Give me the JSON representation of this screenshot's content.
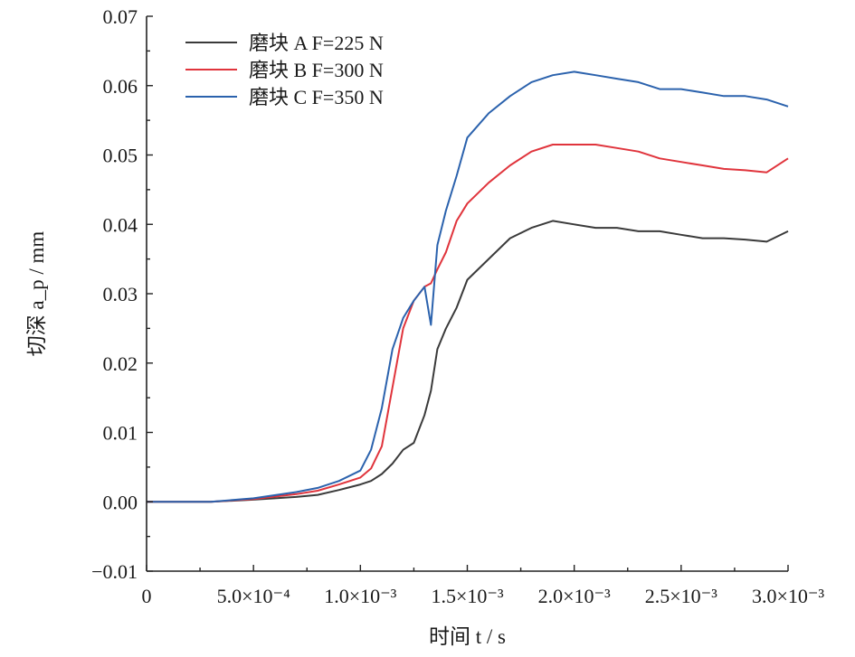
{
  "chart_data": {
    "type": "line",
    "title": "",
    "xlabel": "时间 t / s",
    "ylabel": "切深 a_p / mm",
    "xlim": [
      0,
      0.003
    ],
    "ylim": [
      -0.01,
      0.07
    ],
    "x_ticks": [
      {
        "value": 0,
        "label": "0"
      },
      {
        "value": 0.0005,
        "label": "5.0×10⁻⁴"
      },
      {
        "value": 0.001,
        "label": "1.0×10⁻³"
      },
      {
        "value": 0.0015,
        "label": "1.5×10⁻³"
      },
      {
        "value": 0.002,
        "label": "2.0×10⁻³"
      },
      {
        "value": 0.0025,
        "label": "2.5×10⁻³"
      },
      {
        "value": 0.003,
        "label": "3.0×10⁻³"
      }
    ],
    "y_ticks": [
      {
        "value": -0.01,
        "label": "−0.01"
      },
      {
        "value": 0.0,
        "label": "0.00"
      },
      {
        "value": 0.01,
        "label": "0.01"
      },
      {
        "value": 0.02,
        "label": "0.02"
      },
      {
        "value": 0.03,
        "label": "0.03"
      },
      {
        "value": 0.04,
        "label": "0.04"
      },
      {
        "value": 0.05,
        "label": "0.05"
      },
      {
        "value": 0.06,
        "label": "0.06"
      },
      {
        "value": 0.07,
        "label": "0.07"
      }
    ],
    "grid": false,
    "legend_position": "top-left",
    "series": [
      {
        "name": "磨块 A F=225 N",
        "color": "#3a3a3a",
        "x": [
          0,
          0.0003,
          0.0005,
          0.0007,
          0.0008,
          0.0009,
          0.001,
          0.00105,
          0.0011,
          0.00115,
          0.0012,
          0.00125,
          0.0013,
          0.00133,
          0.00136,
          0.0014,
          0.00145,
          0.0015,
          0.0016,
          0.0017,
          0.0018,
          0.0019,
          0.002,
          0.0021,
          0.0022,
          0.0023,
          0.0024,
          0.0025,
          0.0026,
          0.0027,
          0.0028,
          0.0029,
          0.003
        ],
        "y": [
          0,
          0,
          0.0003,
          0.0007,
          0.001,
          0.0017,
          0.0025,
          0.003,
          0.004,
          0.0055,
          0.0075,
          0.0085,
          0.0125,
          0.016,
          0.022,
          0.025,
          0.028,
          0.032,
          0.035,
          0.038,
          0.0395,
          0.0405,
          0.04,
          0.0395,
          0.0395,
          0.039,
          0.039,
          0.0385,
          0.038,
          0.038,
          0.0378,
          0.0375,
          0.039
        ]
      },
      {
        "name": "磨块 B F=300 N",
        "color": "#e0343c",
        "x": [
          0,
          0.0003,
          0.0005,
          0.0007,
          0.0008,
          0.0009,
          0.001,
          0.00105,
          0.0011,
          0.00115,
          0.0012,
          0.00125,
          0.0013,
          0.00133,
          0.00136,
          0.0014,
          0.00145,
          0.0015,
          0.0016,
          0.0017,
          0.0018,
          0.0019,
          0.002,
          0.0021,
          0.0022,
          0.0023,
          0.0024,
          0.0025,
          0.0026,
          0.0027,
          0.0028,
          0.0029,
          0.003
        ],
        "y": [
          0,
          0,
          0.0004,
          0.0011,
          0.0016,
          0.0025,
          0.0035,
          0.0048,
          0.008,
          0.0165,
          0.025,
          0.029,
          0.031,
          0.0315,
          0.0335,
          0.036,
          0.0405,
          0.043,
          0.046,
          0.0485,
          0.0505,
          0.0515,
          0.0515,
          0.0515,
          0.051,
          0.0505,
          0.0495,
          0.049,
          0.0485,
          0.048,
          0.0478,
          0.0475,
          0.0495
        ]
      },
      {
        "name": "磨块 C F=350 N",
        "color": "#2b62ad",
        "x": [
          0,
          0.0003,
          0.0005,
          0.0007,
          0.0008,
          0.0009,
          0.001,
          0.00105,
          0.0011,
          0.00115,
          0.0012,
          0.00125,
          0.0013,
          0.00133,
          0.00136,
          0.0014,
          0.00145,
          0.0015,
          0.0016,
          0.0017,
          0.0018,
          0.0019,
          0.002,
          0.0021,
          0.0022,
          0.0023,
          0.0024,
          0.0025,
          0.0026,
          0.0027,
          0.0028,
          0.0029,
          0.003
        ],
        "y": [
          0,
          0,
          0.0005,
          0.0014,
          0.002,
          0.003,
          0.0045,
          0.0075,
          0.0135,
          0.022,
          0.0265,
          0.029,
          0.031,
          0.0255,
          0.037,
          0.042,
          0.047,
          0.0525,
          0.056,
          0.0585,
          0.0605,
          0.0615,
          0.062,
          0.0615,
          0.061,
          0.0605,
          0.0595,
          0.0595,
          0.059,
          0.0585,
          0.0585,
          0.058,
          0.057
        ]
      }
    ]
  }
}
